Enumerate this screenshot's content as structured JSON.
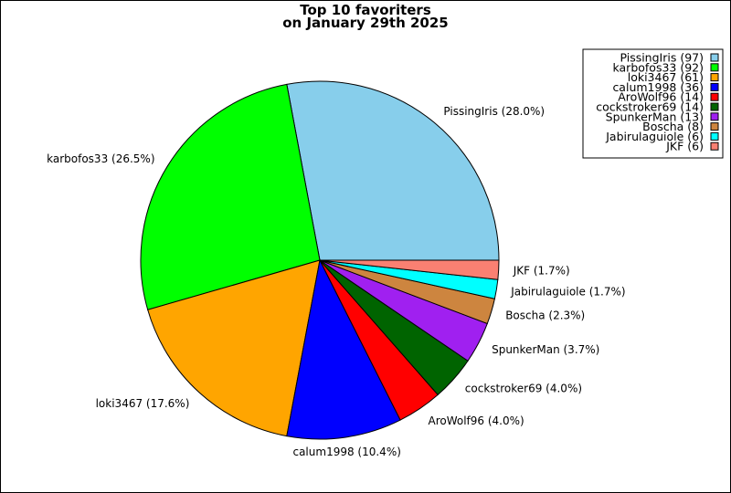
{
  "chart_data": {
    "type": "pie",
    "title": "Top 10 favoriters",
    "subtitle": "on January 29th 2025",
    "slices": [
      {
        "label": "PissingIris",
        "value": 97,
        "percent_label": "28.0%",
        "color": "#87ceeb"
      },
      {
        "label": "karbofos33",
        "value": 92,
        "percent_label": "26.5%",
        "color": "#00ff00"
      },
      {
        "label": "loki3467",
        "value": 61,
        "percent_label": "17.6%",
        "color": "#ffa500"
      },
      {
        "label": "calum1998",
        "value": 36,
        "percent_label": "10.4%",
        "color": "#0000ff"
      },
      {
        "label": "AroWolf96",
        "value": 14,
        "percent_label": "4.0%",
        "color": "#ff0000"
      },
      {
        "label": "cockstroker69",
        "value": 14,
        "percent_label": "4.0%",
        "color": "#006400"
      },
      {
        "label": "SpunkerMan",
        "value": 13,
        "percent_label": "3.7%",
        "color": "#a020f0"
      },
      {
        "label": "Boscha",
        "value": 8,
        "percent_label": "2.3%",
        "color": "#cd853f"
      },
      {
        "label": "Jabirulaguiole",
        "value": 6,
        "percent_label": "1.7%",
        "color": "#00ffff"
      },
      {
        "label": "JKF",
        "value": 6,
        "percent_label": "1.7%",
        "color": "#fa8072"
      }
    ],
    "legend": {
      "position": "top-right",
      "entries": [
        "PissingIris (97)",
        "karbofos33 (92)",
        "loki3467 (61)",
        "calum1998 (36)",
        "AroWolf96 (14)",
        "cockstroker69 (14)",
        "SpunkerMan (13)",
        "Boscha (8)",
        "Jabirulaguiole (6)",
        "JKF (6)"
      ]
    }
  }
}
